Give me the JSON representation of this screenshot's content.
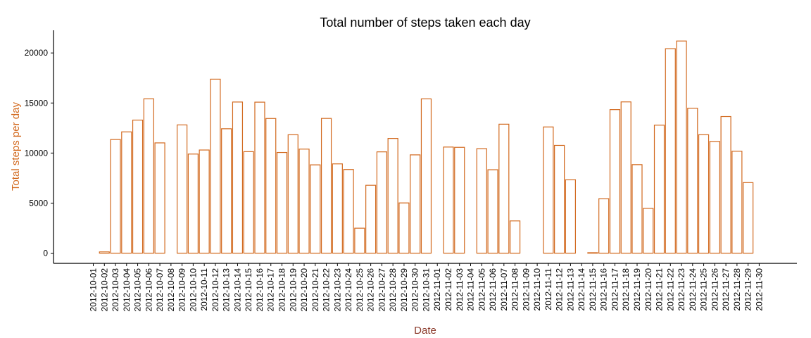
{
  "chart_data": {
    "type": "bar",
    "title": "Total number of steps taken each day",
    "xlabel": "Date",
    "ylabel": "Total steps per day",
    "ylim": [
      0,
      22260
    ],
    "yticks": [
      0,
      5000,
      10000,
      15000,
      20000
    ],
    "ytick_labels": [
      "0",
      "5000",
      "10000",
      "15000",
      "20000"
    ],
    "grid": false,
    "legend": "none",
    "colors": {
      "bar_outline": "#d2691e",
      "bar_fill": "#ffffff",
      "ylabel": "#d2691e",
      "xlabel": "#8b3a2b",
      "axis": "#000000"
    },
    "categories": [
      "2012-10-01",
      "2012-10-02",
      "2012-10-03",
      "2012-10-04",
      "2012-10-05",
      "2012-10-06",
      "2012-10-07",
      "2012-10-08",
      "2012-10-09",
      "2012-10-10",
      "2012-10-11",
      "2012-10-12",
      "2012-10-13",
      "2012-10-14",
      "2012-10-15",
      "2012-10-16",
      "2012-10-17",
      "2012-10-18",
      "2012-10-19",
      "2012-10-20",
      "2012-10-21",
      "2012-10-22",
      "2012-10-23",
      "2012-10-24",
      "2012-10-25",
      "2012-10-26",
      "2012-10-27",
      "2012-10-28",
      "2012-10-29",
      "2012-10-30",
      "2012-10-31",
      "2012-11-01",
      "2012-11-02",
      "2012-11-03",
      "2012-11-04",
      "2012-11-05",
      "2012-11-06",
      "2012-11-07",
      "2012-11-08",
      "2012-11-09",
      "2012-11-10",
      "2012-11-11",
      "2012-11-12",
      "2012-11-13",
      "2012-11-14",
      "2012-11-15",
      "2012-11-16",
      "2012-11-17",
      "2012-11-18",
      "2012-11-19",
      "2012-11-20",
      "2012-11-21",
      "2012-11-22",
      "2012-11-23",
      "2012-11-24",
      "2012-11-25",
      "2012-11-26",
      "2012-11-27",
      "2012-11-28",
      "2012-11-29",
      "2012-11-30"
    ],
    "values": [
      0,
      126,
      11352,
      12116,
      13294,
      15420,
      11015,
      0,
      12811,
      9900,
      10304,
      17382,
      12426,
      15098,
      10139,
      15084,
      13452,
      10056,
      11829,
      10395,
      8821,
      13460,
      8918,
      8355,
      2492,
      6778,
      10119,
      11458,
      5018,
      9819,
      15414,
      0,
      10600,
      10571,
      0,
      10439,
      8334,
      12883,
      3219,
      0,
      0,
      12608,
      10765,
      7336,
      0,
      41,
      5441,
      14339,
      15110,
      8841,
      4472,
      12787,
      20427,
      21194,
      14478,
      11834,
      11162,
      13646,
      10183,
      7047,
      0
    ]
  }
}
